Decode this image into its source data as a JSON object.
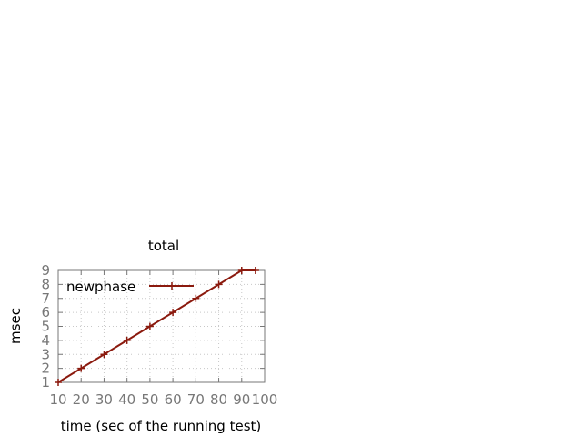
{
  "chart_data": {
    "type": "line",
    "title": "total",
    "xlabel": "time (sec of the running test)",
    "ylabel": "msec",
    "x": [
      10,
      20,
      30,
      40,
      50,
      60,
      70,
      80,
      90,
      96
    ],
    "xticks": [
      10,
      20,
      30,
      40,
      50,
      60,
      70,
      80,
      90,
      100
    ],
    "xlim": [
      10,
      100
    ],
    "yticks": [
      1,
      2,
      3,
      4,
      5,
      6,
      7,
      8,
      9
    ],
    "ylim": [
      1,
      9
    ],
    "series": [
      {
        "name": "newphase",
        "values": [
          1,
          2,
          3,
          4,
          5,
          6,
          7,
          8,
          9,
          9
        ],
        "color": "#8b1a0e"
      }
    ],
    "grid": true,
    "legend_position": "top-left"
  }
}
